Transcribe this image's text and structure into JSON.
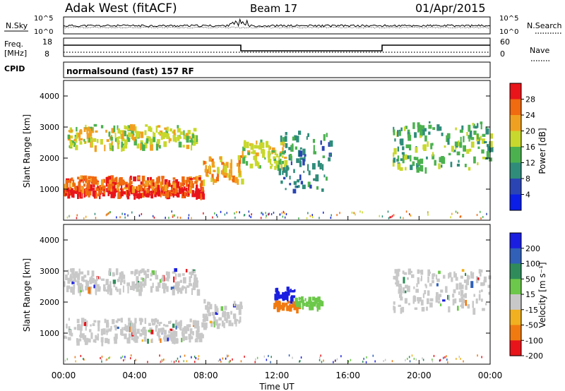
{
  "header": {
    "station": "Adak West (fitACF)",
    "beam": "Beam 17",
    "date": "01/Apr/2015"
  },
  "panels": {
    "nsky": {
      "label": "N.Sky",
      "ticks": [
        "10^5",
        "10^0"
      ],
      "right_label": "N.Search",
      "right_ticks": [
        "10^5",
        "10^0"
      ]
    },
    "freq": {
      "label_top": "Freq.",
      "label_unit": "[MHz]",
      "ticks": [
        "18",
        "8"
      ],
      "right_label": "Nave",
      "right_ticks": [
        "60",
        "0"
      ]
    },
    "cpid": {
      "label": "CPID",
      "value": "normalsound (fast) 157 RF"
    }
  },
  "chart_data": [
    {
      "type": "heatmap",
      "name": "power",
      "ylabel": "Slant Range [km]",
      "ylim": [
        0,
        4500
      ],
      "yticks": [
        "1000",
        "2000",
        "3000",
        "4000"
      ],
      "colorbar": {
        "label": "Power [dB]",
        "ticks": [
          "4",
          "8",
          "12",
          "16",
          "20",
          "24",
          "28"
        ],
        "colors": [
          "#0a1ee8",
          "#2a44b4",
          "#2f8c7a",
          "#4bb14f",
          "#c8d82c",
          "#f0a020",
          "#f06a10",
          "#e8141a"
        ]
      },
      "bands": [
        {
          "from_hour": 0.0,
          "to_hour": 7.8,
          "range_from": 850,
          "range_to": 1050,
          "power": 28
        },
        {
          "from_hour": 0.0,
          "to_hour": 7.8,
          "range_from": 1050,
          "range_to": 1450,
          "power": 22
        },
        {
          "from_hour": 7.8,
          "to_hour": 10.0,
          "range_from": 1300,
          "range_to": 2100,
          "power": 18
        },
        {
          "from_hour": 0.0,
          "to_hour": 7.5,
          "range_from": 2400,
          "range_to": 3100,
          "power": 16
        },
        {
          "from_hour": 10.0,
          "to_hour": 12.5,
          "range_from": 1700,
          "range_to": 2600,
          "power": 14
        },
        {
          "from_hour": 12.0,
          "to_hour": 15.0,
          "range_from": 1000,
          "range_to": 2900,
          "power": 6
        },
        {
          "from_hour": 18.5,
          "to_hour": 24.0,
          "range_from": 1700,
          "range_to": 3200,
          "power": 10
        }
      ]
    },
    {
      "type": "heatmap",
      "name": "velocity",
      "xlabel": "Time UT",
      "ylabel": "Slant Range [km]",
      "ylim": [
        0,
        4500
      ],
      "yticks": [
        "1000",
        "2000",
        "3000",
        "4000"
      ],
      "xticks": [
        "00:00",
        "04:00",
        "08:00",
        "12:00",
        "16:00",
        "20:00",
        "00:00"
      ],
      "xlim_hours": [
        0,
        24
      ],
      "colorbar": {
        "label": "Velocity [m s⁻¹]",
        "ticks": [
          "200",
          "100",
          "50",
          "15",
          "-15",
          "-50",
          "-100",
          "-200"
        ],
        "colors": [
          "#1a1ee0",
          "#3060b8",
          "#2f8c5a",
          "#6cc84a",
          "#c8c8c8",
          "#f0b020",
          "#f07a10",
          "#e8141a"
        ]
      },
      "bands": [
        {
          "from_hour": 0.0,
          "to_hour": 7.8,
          "range_from": 800,
          "range_to": 1500,
          "velocity": 0
        },
        {
          "from_hour": 7.8,
          "to_hour": 10.0,
          "range_from": 1300,
          "range_to": 2100,
          "velocity": 0
        },
        {
          "from_hour": 0.0,
          "to_hour": 7.5,
          "range_from": 2400,
          "range_to": 3100,
          "velocity": 0
        },
        {
          "from_hour": 11.8,
          "to_hour": 13.3,
          "range_from": 1850,
          "range_to": 2050,
          "velocity": -100
        },
        {
          "from_hour": 11.8,
          "to_hour": 13.0,
          "range_from": 2150,
          "range_to": 2500,
          "velocity": 200
        },
        {
          "from_hour": 13.0,
          "to_hour": 14.5,
          "range_from": 1900,
          "range_to": 2200,
          "velocity": 15
        },
        {
          "from_hour": 18.5,
          "to_hour": 24.0,
          "range_from": 1800,
          "range_to": 3100,
          "velocity": 0
        }
      ]
    }
  ]
}
